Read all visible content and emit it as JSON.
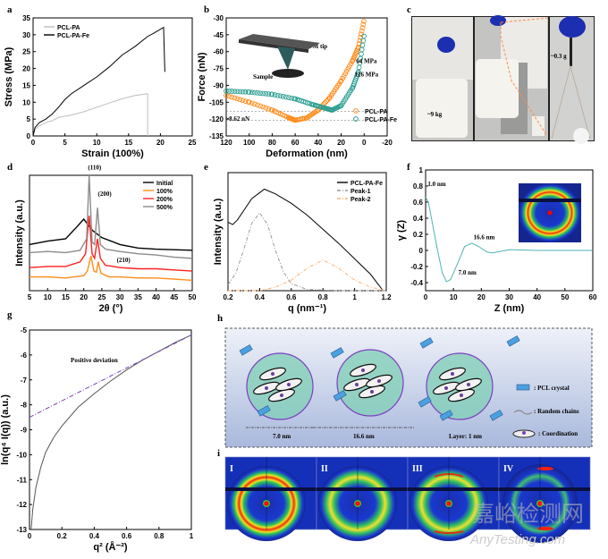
{
  "panel_labels": {
    "a": "a",
    "b": "b",
    "c": "c",
    "d": "d",
    "e": "e",
    "f": "f",
    "g": "g",
    "h": "h",
    "i": "i"
  },
  "colors": {
    "orange": "#ff8c1a",
    "teal": "#2a9d8f",
    "red": "#ff2020",
    "gray": "#9a9a9a",
    "purple": "#7b3fbf",
    "black": "#000000"
  },
  "chart_data": [
    {
      "id": "a",
      "type": "line",
      "xlabel": "Strain (100%)",
      "ylabel": "Stress (MPa)",
      "xlim": [
        0,
        25
      ],
      "ylim": [
        0,
        35
      ],
      "xticks": [
        0,
        5,
        10,
        15,
        20,
        25
      ],
      "yticks": [
        0,
        5,
        10,
        15,
        20,
        25,
        30,
        35
      ],
      "legend_position": "top-left",
      "grid": false,
      "series": [
        {
          "name": "PCL-PA",
          "color": "#bdbdbd",
          "points": [
            [
              0,
              0
            ],
            [
              0.3,
              2
            ],
            [
              1,
              3
            ],
            [
              2,
              4
            ],
            [
              3,
              4.5
            ],
            [
              4,
              5.5
            ],
            [
              6,
              6.2
            ],
            [
              8,
              7.2
            ],
            [
              10,
              8.5
            ],
            [
              12,
              9.8
            ],
            [
              14,
              11
            ],
            [
              16,
              12
            ],
            [
              18,
              12.5
            ],
            [
              18,
              0
            ]
          ]
        },
        {
          "name": "PCL-PA-Fe",
          "color": "#000000",
          "points": [
            [
              0,
              0
            ],
            [
              0.3,
              2.5
            ],
            [
              1,
              4
            ],
            [
              2,
              5
            ],
            [
              3,
              6.5
            ],
            [
              4,
              8.5
            ],
            [
              5,
              10.8
            ],
            [
              6,
              12.5
            ],
            [
              8,
              15
            ],
            [
              10,
              17.5
            ],
            [
              12,
              20.5
            ],
            [
              14,
              24
            ],
            [
              16,
              26.5
            ],
            [
              18,
              29.5
            ],
            [
              19,
              30.5
            ],
            [
              20.5,
              32.2
            ],
            [
              20.7,
              19
            ]
          ]
        }
      ]
    },
    {
      "id": "b",
      "type": "scatter",
      "xlabel": "Deformation (nm)",
      "ylabel": "Force (nN)",
      "xlim": [
        120,
        -20
      ],
      "ylim": [
        -135,
        -30
      ],
      "xticks": [
        120,
        100,
        80,
        60,
        40,
        20,
        0,
        -20
      ],
      "yticks": [
        -135,
        -120,
        -105,
        -90,
        -75,
        -60,
        -45,
        -30
      ],
      "legend_position": "bottom-right",
      "grid": false,
      "series": [
        {
          "name": "PCL-PA",
          "color": "#ff8c1a",
          "points": [
            [
              120,
              -99
            ],
            [
              100,
              -105
            ],
            [
              80,
              -112
            ],
            [
              65,
              -119
            ],
            [
              60,
              -121
            ],
            [
              50,
              -119
            ],
            [
              40,
              -112
            ],
            [
              30,
              -101
            ],
            [
              20,
              -86
            ],
            [
              10,
              -68
            ],
            [
              5,
              -56
            ],
            [
              0,
              -32
            ]
          ]
        },
        {
          "name": "PCL-PA-Fe",
          "color": "#2a9d8f",
          "points": [
            [
              120,
              -95
            ],
            [
              100,
              -96
            ],
            [
              80,
              -98
            ],
            [
              60,
              -102
            ],
            [
              45,
              -107
            ],
            [
              35,
              -110
            ],
            [
              28,
              -112
            ],
            [
              20,
              -108
            ],
            [
              10,
              -92
            ],
            [
              5,
              -78
            ],
            [
              0,
              -45
            ]
          ]
        }
      ],
      "reference_lines_y": [
        -113,
        -121
      ],
      "annotations": {
        "delta": "~8.62 nN",
        "mod1": "64 MPa",
        "mod2": "126 MPa",
        "tip": "AFM tip",
        "sample": "Sample"
      }
    },
    {
      "id": "d",
      "type": "line",
      "xlabel": "2θ (°)",
      "ylabel": "Intensity (a.u.)",
      "xlim": [
        5,
        50
      ],
      "ylim": [
        0,
        100
      ],
      "xticks": [
        5,
        10,
        15,
        20,
        25,
        30,
        35,
        40,
        45,
        50
      ],
      "yticks": [],
      "legend_position": "top-right",
      "grid": false,
      "series": [
        {
          "name": "Initial",
          "color": "#000000",
          "points": [
            [
              5,
              40
            ],
            [
              10,
              43
            ],
            [
              15,
              45
            ],
            [
              18,
              55
            ],
            [
              20,
              62
            ],
            [
              21,
              58
            ],
            [
              22.5,
              52
            ],
            [
              25,
              46
            ],
            [
              30,
              40
            ],
            [
              35,
              37
            ],
            [
              40,
              36
            ],
            [
              45,
              35.5
            ],
            [
              50,
              35
            ]
          ]
        },
        {
          "name": "100%",
          "color": "#ff8c1a",
          "points": [
            [
              5,
              12
            ],
            [
              10,
              12
            ],
            [
              15,
              11
            ],
            [
              20,
              13
            ],
            [
              21,
              17
            ],
            [
              22,
              30
            ],
            [
              22.8,
              17
            ],
            [
              23.5,
              16
            ],
            [
              24,
              25
            ],
            [
              24.8,
              15
            ],
            [
              27,
              12
            ],
            [
              30,
              12
            ],
            [
              35,
              11
            ],
            [
              40,
              11
            ],
            [
              45,
              10
            ],
            [
              50,
              9
            ]
          ]
        },
        {
          "name": "200%",
          "color": "#ff2020",
          "points": [
            [
              5,
              20
            ],
            [
              10,
              21
            ],
            [
              15,
              21
            ],
            [
              19,
              25
            ],
            [
              20.5,
              32
            ],
            [
              21.5,
              65
            ],
            [
              22.3,
              32
            ],
            [
              23,
              28
            ],
            [
              23.8,
              45
            ],
            [
              24.6,
              28
            ],
            [
              26,
              22
            ],
            [
              30,
              20
            ],
            [
              35,
              19
            ],
            [
              40,
              19
            ],
            [
              45,
              18
            ],
            [
              50,
              17
            ]
          ]
        },
        {
          "name": "500%",
          "color": "#8c8c8c",
          "points": [
            [
              5,
              33
            ],
            [
              10,
              34
            ],
            [
              15,
              33
            ],
            [
              19,
              35
            ],
            [
              20.8,
              45
            ],
            [
              21.5,
              100
            ],
            [
              22.3,
              42
            ],
            [
              23,
              40
            ],
            [
              23.8,
              72
            ],
            [
              24.6,
              40
            ],
            [
              26,
              36
            ],
            [
              30,
              34
            ],
            [
              35,
              32
            ],
            [
              40,
              31
            ],
            [
              45,
              29
            ],
            [
              50,
              28
            ]
          ]
        }
      ],
      "annotations": {
        "p110": "(110)",
        "p200": "(200)",
        "p210": "(210)"
      }
    },
    {
      "id": "e",
      "type": "line",
      "xlabel": "q (nm⁻¹)",
      "ylabel": "Intensity (a.u.)",
      "xlim": [
        0.2,
        1.2
      ],
      "ylim": [
        0,
        100
      ],
      "xticks": [
        0.2,
        0.4,
        0.6,
        0.8,
        1.0,
        1.2
      ],
      "yticks": [],
      "legend_position": "top-right",
      "grid": false,
      "series": [
        {
          "name": "PCL-PA-Fe",
          "color": "#000000",
          "dash": "",
          "points": [
            [
              0.2,
              58
            ],
            [
              0.23,
              56
            ],
            [
              0.26,
              60
            ],
            [
              0.3,
              68
            ],
            [
              0.35,
              78
            ],
            [
              0.4,
              83
            ],
            [
              0.43,
              86
            ],
            [
              0.5,
              82
            ],
            [
              0.6,
              74
            ],
            [
              0.7,
              64
            ],
            [
              0.8,
              52
            ],
            [
              0.9,
              40
            ],
            [
              1.0,
              27
            ],
            [
              1.1,
              14
            ],
            [
              1.18,
              0
            ]
          ]
        },
        {
          "name": "Peak-1",
          "color": "#999999",
          "dash": "4,2,1,2",
          "points": [
            [
              0.2,
              5
            ],
            [
              0.25,
              15
            ],
            [
              0.3,
              35
            ],
            [
              0.35,
              57
            ],
            [
              0.4,
              66
            ],
            [
              0.45,
              56
            ],
            [
              0.5,
              34
            ],
            [
              0.55,
              16
            ],
            [
              0.6,
              6
            ],
            [
              0.7,
              1
            ],
            [
              0.9,
              0
            ],
            [
              1.2,
              0
            ]
          ]
        },
        {
          "name": "Peak-2",
          "color": "#ffb070",
          "dash": "4,2,1,2",
          "points": [
            [
              0.2,
              0
            ],
            [
              0.4,
              0
            ],
            [
              0.5,
              3
            ],
            [
              0.6,
              9
            ],
            [
              0.7,
              19
            ],
            [
              0.8,
              26
            ],
            [
              0.9,
              19
            ],
            [
              1.0,
              9
            ],
            [
              1.1,
              3
            ],
            [
              1.2,
              0
            ]
          ]
        }
      ]
    },
    {
      "id": "f",
      "type": "line",
      "xlabel": "Z (nm)",
      "ylabel": "γ (Z)",
      "xlim": [
        0,
        60
      ],
      "ylim": [
        -0.5,
        1.0
      ],
      "xticks": [
        0,
        10,
        20,
        30,
        40,
        50,
        60
      ],
      "yticks": [
        -0.4,
        -0.2,
        0.0,
        0.2,
        0.4,
        0.6,
        0.8,
        1.0
      ],
      "legend_position": "none",
      "grid": false,
      "series": [
        {
          "name": "",
          "color": "#4fb3b3",
          "points": [
            [
              0,
              0.66
            ],
            [
              1,
              0.6
            ],
            [
              2,
              0.42
            ],
            [
              4,
              0.05
            ],
            [
              6,
              -0.28
            ],
            [
              7.5,
              -0.39
            ],
            [
              9,
              -0.36
            ],
            [
              12,
              -0.12
            ],
            [
              14,
              0.05
            ],
            [
              16.6,
              0.09
            ],
            [
              19,
              0.05
            ],
            [
              22,
              -0.02
            ],
            [
              24,
              -0.03
            ],
            [
              30,
              0.01
            ],
            [
              40,
              0.0
            ],
            [
              50,
              0.0
            ],
            [
              60,
              0.0
            ]
          ]
        }
      ],
      "annotations": {
        "a1": "1.0 nm",
        "a2": "16.6 nm",
        "a3": "7.0 nm"
      }
    },
    {
      "id": "g",
      "type": "line",
      "xlabel": "q² (Å⁻²)",
      "ylabel": "ln(q⁴ I(q)) (a.u.)",
      "xlim": [
        0,
        1
      ],
      "ylim": [
        -13,
        -5
      ],
      "xticks": [
        0.0,
        0.2,
        0.4,
        0.6,
        0.8,
        1.0
      ],
      "yticks": [
        -13,
        -12,
        -11,
        -10,
        -9,
        -8,
        -7,
        -6,
        -5
      ],
      "legend_position": "none",
      "grid": false,
      "series": [
        {
          "name": "",
          "color": "#555555",
          "dash": "",
          "points": [
            [
              0.01,
              -13
            ],
            [
              0.02,
              -12.2
            ],
            [
              0.04,
              -11.3
            ],
            [
              0.07,
              -10.5
            ],
            [
              0.1,
              -9.9
            ],
            [
              0.15,
              -9.3
            ],
            [
              0.2,
              -8.85
            ],
            [
              0.3,
              -8.1
            ],
            [
              0.4,
              -7.55
            ],
            [
              0.5,
              -7.05
            ],
            [
              0.6,
              -6.6
            ],
            [
              0.7,
              -6.2
            ],
            [
              0.8,
              -5.85
            ],
            [
              0.9,
              -5.5
            ],
            [
              1.0,
              -5.2
            ]
          ]
        },
        {
          "name": "",
          "color": "#7b3fbf",
          "dash": "5,2,1,2",
          "points": [
            [
              0,
              -8.5
            ],
            [
              1.0,
              -5.2
            ]
          ]
        }
      ],
      "annotations": {
        "dev": "Positive deviation"
      }
    }
  ],
  "panel_c": {
    "label1": "~9 kg",
    "label2": "~0.3 g"
  },
  "panel_h": {
    "dim1": "7.0 nm",
    "dim2": "16.6 nm",
    "layer": "Layer: 1 nm",
    "legend": [
      ": PCL crystal",
      ": Random chains",
      ": Coordination"
    ]
  },
  "panel_i": {
    "tiles": [
      {
        "label": "I",
        "ring": "red"
      },
      {
        "label": "II",
        "ring": "yellow"
      },
      {
        "label": "III",
        "ring": "yellow-oriented"
      },
      {
        "label": "IV",
        "ring": "green-oriented"
      }
    ]
  },
  "watermark": {
    "cn": "嘉峪检测网",
    "en": "AnyTesting.com"
  }
}
